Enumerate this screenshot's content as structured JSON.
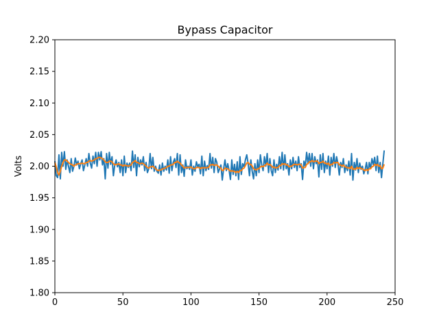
{
  "chart_data": {
    "type": "line",
    "title": "Bypass Capacitor",
    "xlabel": "",
    "ylabel": "Volts",
    "xlim": [
      0,
      250
    ],
    "ylim": [
      1.8,
      2.2
    ],
    "x_ticks": [
      "0",
      "50",
      "100",
      "150",
      "200",
      "250"
    ],
    "y_ticks": [
      "1.80",
      "1.85",
      "1.90",
      "1.95",
      "2.00",
      "2.05",
      "2.10",
      "2.15",
      "2.20"
    ],
    "grid": false,
    "x_step": 1,
    "series": [
      {
        "color": "#1f77b4",
        "values": [
          2.008,
          1.985,
          1.982,
          2.018,
          1.98,
          2.022,
          2.0,
          2.023,
          1.995,
          2.01,
          2.0,
          1.99,
          2.012,
          1.992,
          2.0,
          2.013,
          2.002,
          2.008,
          1.996,
          2.004,
          2.01,
          1.993,
          2.002,
          2.012,
          2.0,
          2.02,
          2.005,
          1.997,
          2.016,
          2.004,
          2.022,
          2.0,
          2.022,
          2.01,
          2.023,
          2.002,
          2.012,
          1.98,
          2.02,
          1.997,
          2.022,
          2.003,
          2.015,
          1.985,
          2.002,
          2.01,
          1.999,
          2.006,
          1.99,
          2.01,
          1.985,
          2.016,
          1.99,
          2.005,
          1.998,
          2.005,
          1.993,
          2.024,
          1.998,
          2.018,
          1.985,
          2.014,
          1.999,
          2.01,
          2.002,
          2.015,
          1.993,
          2.006,
          1.99,
          1.996,
          2.02,
          1.996,
          2.014,
          1.992,
          2.0,
          1.992,
          1.989,
          2.002,
          1.986,
          2.005,
          1.992,
          2.0,
          1.994,
          2.01,
          1.989,
          2.015,
          1.993,
          2.006,
          2.012,
          1.998,
          2.02,
          1.986,
          2.018,
          1.99,
          2.002,
          1.984,
          2.01,
          1.996,
          2.0,
          1.995,
          2.01,
          1.986,
          2.0,
          1.992,
          2.007,
          1.999,
          2.003,
          1.988,
          2.016,
          1.985,
          2.008,
          1.993,
          2.001,
          1.995,
          2.02,
          1.997,
          2.014,
          1.99,
          2.012,
          2.006,
          1.99,
          1.996,
          2.002,
          1.978,
          1.996,
          2.01,
          1.993,
          2.004,
          1.994,
          1.979,
          2.01,
          1.987,
          2.003,
          1.985,
          2.007,
          1.979,
          2.015,
          1.987,
          2.004,
          1.999,
          2.01,
          2.018,
          2.004,
          1.985,
          2.01,
          1.992,
          1.98,
          2.004,
          1.985,
          2.01,
          1.99,
          2.018,
          2.002,
          1.993,
          2.015,
          2.0,
          2.02,
          1.99,
          2.012,
          1.993,
          1.985,
          2.01,
          1.99,
          2.003,
          1.994,
          2.015,
          1.996,
          2.022,
          1.994,
          2.018,
          1.996,
          2.004,
          1.986,
          2.01,
          1.996,
          2.014,
          1.998,
          2.008,
          1.993,
          2.015,
          1.998,
          2.004,
          1.979,
          2.008,
          2.0,
          2.022,
          2.004,
          2.02,
          2.0,
          2.02,
          1.996,
          2.015,
          2.004,
          2.01,
          1.983,
          2.018,
          1.995,
          2.02,
          1.99,
          2.008,
          1.996,
          2.016,
          1.986,
          2.014,
          2.0,
          2.02,
          1.998,
          2.015,
          2.004,
          1.986,
          2.006,
          1.998,
          2.012,
          1.99,
          2.002,
          1.993,
          2.008,
          1.986,
          2.02,
          1.978,
          2.006,
          1.994,
          2.012,
          1.99,
          2.005,
          1.995,
          2.0,
          1.988,
          1.995,
          2.006,
          1.988,
          2.006,
          1.996,
          2.012,
          2.002,
          2.014,
          1.993,
          2.016,
          1.99,
          2.006,
          1.982,
          2.004,
          2.025
        ]
      },
      {
        "color": "#ff7f0e",
        "values": [
          2.006,
          1.999,
          1.99,
          1.986,
          1.992,
          2.0,
          2.006,
          2.01,
          2.01,
          2.008,
          2.006,
          2.004,
          2.003,
          2.002,
          2.0,
          2.002,
          2.003,
          2.004,
          2.004,
          2.004,
          2.005,
          2.004,
          2.004,
          2.006,
          2.006,
          2.008,
          2.009,
          2.008,
          2.009,
          2.01,
          2.012,
          2.012,
          2.014,
          2.014,
          2.013,
          2.012,
          2.01,
          2.007,
          2.006,
          2.006,
          2.008,
          2.008,
          2.007,
          2.004,
          2.002,
          2.003,
          2.003,
          2.004,
          2.002,
          2.002,
          2.0,
          2.002,
          2.001,
          2.001,
          2.0,
          2.001,
          2.002,
          2.006,
          2.007,
          2.009,
          2.006,
          2.006,
          2.004,
          2.004,
          2.005,
          2.004,
          2.002,
          2.0,
          1.998,
          1.997,
          1.999,
          1.999,
          2.0,
          1.998,
          1.996,
          1.994,
          1.993,
          1.994,
          1.994,
          1.996,
          1.996,
          1.997,
          1.998,
          2.0,
          2.0,
          2.002,
          2.002,
          2.003,
          2.006,
          2.006,
          2.008,
          2.006,
          2.005,
          2.002,
          2.0,
          1.997,
          1.998,
          1.998,
          1.998,
          1.998,
          1.999,
          1.997,
          1.996,
          1.996,
          1.998,
          1.998,
          1.998,
          1.996,
          1.998,
          1.997,
          1.998,
          1.997,
          1.998,
          1.998,
          2.002,
          2.002,
          2.003,
          2.001,
          2.002,
          2.002,
          2.0,
          1.998,
          1.997,
          1.993,
          1.994,
          1.997,
          1.996,
          1.996,
          1.994,
          1.992,
          1.993,
          1.992,
          1.992,
          1.99,
          1.992,
          1.99,
          1.993,
          1.993,
          1.996,
          1.997,
          2.001,
          2.005,
          2.006,
          2.003,
          2.003,
          2.0,
          1.996,
          1.995,
          1.994,
          1.996,
          1.996,
          1.999,
          2.0,
          1.999,
          2.001,
          2.002,
          2.005,
          2.002,
          2.003,
          2.001,
          1.998,
          1.999,
          1.997,
          1.998,
          1.998,
          2.001,
          2.001,
          2.004,
          2.003,
          2.004,
          2.002,
          2.002,
          1.999,
          2.0,
          2.0,
          2.002,
          2.003,
          2.003,
          2.002,
          2.003,
          2.003,
          2.002,
          1.997,
          1.998,
          1.998,
          2.003,
          2.004,
          2.007,
          2.007,
          2.009,
          2.007,
          2.008,
          2.008,
          2.008,
          2.004,
          2.006,
          2.006,
          2.008,
          2.005,
          2.005,
          2.003,
          2.005,
          2.001,
          2.003,
          2.003,
          2.006,
          2.005,
          2.006,
          2.006,
          2.002,
          2.002,
          2.0,
          2.002,
          1.999,
          1.999,
          1.997,
          1.998,
          1.996,
          2.0,
          1.995,
          1.996,
          1.995,
          1.998,
          1.996,
          1.998,
          1.996,
          1.996,
          1.994,
          1.993,
          1.995,
          1.993,
          1.996,
          1.996,
          1.999,
          2.0,
          2.003,
          2.001,
          2.003,
          2.0,
          2.001,
          1.996,
          1.997,
          2.003
        ]
      }
    ]
  }
}
